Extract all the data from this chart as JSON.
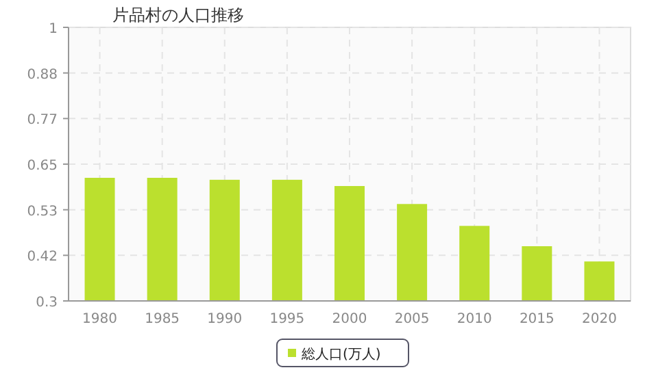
{
  "chart_data": {
    "type": "bar",
    "title": "片品村の人口推移",
    "categories": [
      "1980",
      "1985",
      "1990",
      "1995",
      "2000",
      "2005",
      "2010",
      "2015",
      "2020"
    ],
    "series": [
      {
        "name": "総人口(万人)",
        "color": "#bbe02e",
        "values": [
          0.615,
          0.615,
          0.61,
          0.61,
          0.594,
          0.548,
          0.492,
          0.44,
          0.401
        ]
      }
    ],
    "ylim": [
      0.3,
      1
    ],
    "yticks": [
      0.3,
      {
        "value": 0.4167,
        "label": "0.42"
      },
      {
        "value": 0.5333,
        "label": "0.53"
      },
      0.65,
      {
        "value": 0.7667,
        "label": "0.77"
      },
      {
        "value": 0.8833,
        "label": "0.88"
      },
      1
    ],
    "grid": true,
    "legend": "bottom"
  }
}
